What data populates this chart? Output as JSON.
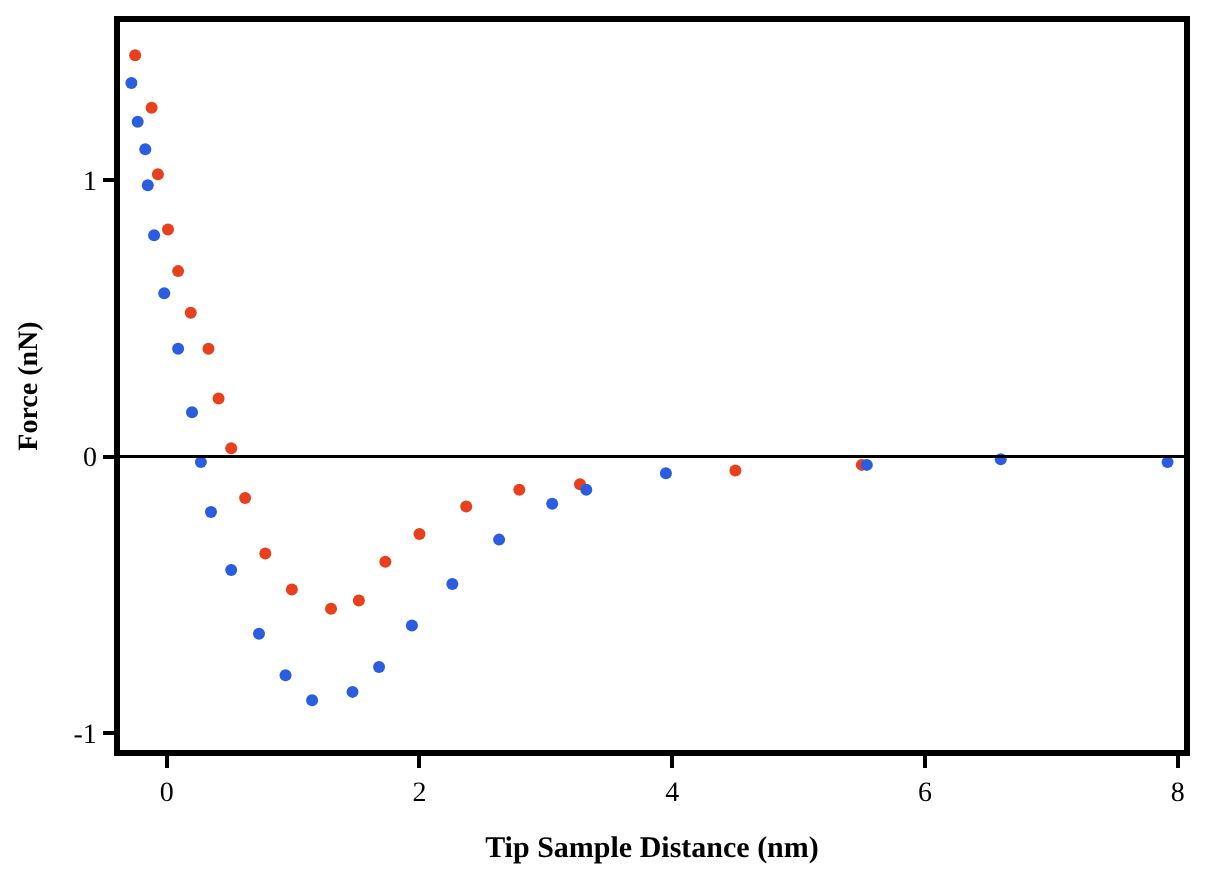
{
  "chart_data": {
    "type": "scatter",
    "xlabel": "Tip Sample Distance (nm)",
    "ylabel": "Force (nN)",
    "xlim": [
      -0.37,
      8.05
    ],
    "ylim": [
      -1.06,
      1.57
    ],
    "xticks": [
      0,
      2,
      4,
      6,
      8
    ],
    "yticks": [
      -1,
      0,
      1
    ],
    "legend": false,
    "marker": "circle",
    "ref_lines": [
      {
        "axis": "y",
        "value": 0,
        "color": "#000000"
      }
    ],
    "series": [
      {
        "color": "#e8401c",
        "x": [
          -0.25,
          -0.12,
          -0.07,
          0.01,
          0.09,
          0.19,
          0.33,
          0.41,
          0.51,
          0.62,
          0.78,
          0.99,
          1.3,
          1.52,
          1.73,
          2.0,
          2.37,
          2.79,
          3.27,
          4.5,
          5.5
        ],
        "values": [
          1.45,
          1.26,
          1.02,
          0.82,
          0.67,
          0.52,
          0.39,
          0.21,
          0.03,
          -0.15,
          -0.35,
          -0.48,
          -0.55,
          -0.52,
          -0.38,
          -0.28,
          -0.18,
          -0.12,
          -0.1,
          -0.05,
          -0.03
        ]
      },
      {
        "color": "#2a5de0",
        "x": [
          -0.28,
          -0.23,
          -0.17,
          -0.15,
          -0.1,
          -0.02,
          0.09,
          0.2,
          0.27,
          0.35,
          0.51,
          0.73,
          0.94,
          1.15,
          1.47,
          1.68,
          1.94,
          2.26,
          2.63,
          3.05,
          3.32,
          3.95,
          5.54,
          6.6,
          7.92
        ],
        "values": [
          1.35,
          1.21,
          1.11,
          0.98,
          0.8,
          0.59,
          0.39,
          0.16,
          -0.02,
          -0.2,
          -0.41,
          -0.64,
          -0.79,
          -0.88,
          -0.85,
          -0.76,
          -0.61,
          -0.46,
          -0.3,
          -0.17,
          -0.12,
          -0.06,
          -0.03,
          -0.01,
          -0.02
        ]
      }
    ]
  }
}
